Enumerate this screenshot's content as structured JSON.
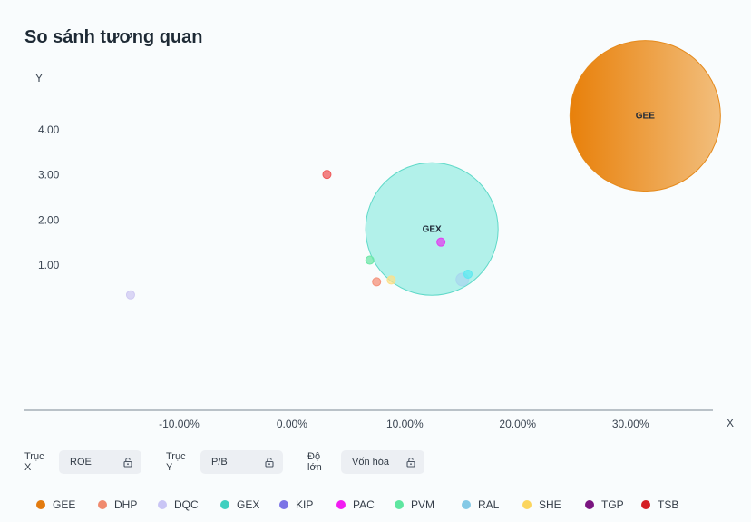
{
  "title": "So sánh tương quan",
  "chart_data": {
    "type": "scatter",
    "subtype": "bubble",
    "title": "So sánh tương quan",
    "xlabel": "X",
    "ylabel": "Y",
    "x_ticks": [
      "-10.00%",
      "0.00%",
      "10.00%",
      "20.00%",
      "30.00%"
    ],
    "y_ticks": [
      "1.00",
      "2.00",
      "3.00",
      "4.00"
    ],
    "xlim": [
      -23.7,
      37.3
    ],
    "ylim": [
      -2.22,
      5.67
    ],
    "grid": false,
    "legend_position": "bottom",
    "points": [
      {
        "name": "GEE",
        "x": 31.3,
        "y": 4.31,
        "size": 100,
        "color": "#e8860e",
        "label": true
      },
      {
        "name": "GEX",
        "x": 12.4,
        "y": 1.8,
        "size": 87,
        "color": "#5fd9c8",
        "label": true
      },
      {
        "name": "PAC",
        "x": 13.2,
        "y": 1.51,
        "size": 5,
        "color": "#e040f0",
        "label": false
      },
      {
        "name": "TSB",
        "x": 3.1,
        "y": 3.01,
        "size": 5,
        "color": "#ef5b5b",
        "label": false
      },
      {
        "name": "PVM",
        "x": 6.9,
        "y": 1.11,
        "size": 5,
        "color": "#6ee7a8",
        "label": false
      },
      {
        "name": "DHP",
        "x": 7.5,
        "y": 0.63,
        "size": 5,
        "color": "#f4927a",
        "label": false
      },
      {
        "name": "SHE",
        "x": 8.8,
        "y": 0.67,
        "size": 5,
        "color": "#fde08a",
        "label": false
      },
      {
        "name": "RAL",
        "x": 15.1,
        "y": 0.68,
        "size": 8,
        "color": "#a8d7ee",
        "label": false
      },
      {
        "name": "GEX2",
        "x": 15.6,
        "y": 0.8,
        "size": 5,
        "color": "#5ee8f0",
        "label": false
      },
      {
        "name": "DQC",
        "x": -14.3,
        "y": 0.34,
        "size": 5,
        "color": "#cfc9f2",
        "label": false
      }
    ]
  },
  "controls": {
    "x_label": "Trục X",
    "x_value": "ROE",
    "y_label": "Trục Y",
    "y_value": "P/B",
    "size_label": "Độ lớn",
    "size_value": "Vốn hóa"
  },
  "legend": [
    {
      "name": "GEE",
      "color": "#e27b0f"
    },
    {
      "name": "DHP",
      "color": "#f08a6e"
    },
    {
      "name": "DQC",
      "color": "#c9c5f5"
    },
    {
      "name": "GEX",
      "color": "#3fd0c0"
    },
    {
      "name": "KIP",
      "color": "#7b73e6"
    },
    {
      "name": "PAC",
      "color": "#f21cf2"
    },
    {
      "name": "PVM",
      "color": "#5ee6a0"
    },
    {
      "name": "RAL",
      "color": "#84c9e6"
    },
    {
      "name": "SHE",
      "color": "#fbd55e"
    },
    {
      "name": "TGP",
      "color": "#7a1580"
    },
    {
      "name": "TSB",
      "color": "#d41f25"
    }
  ]
}
